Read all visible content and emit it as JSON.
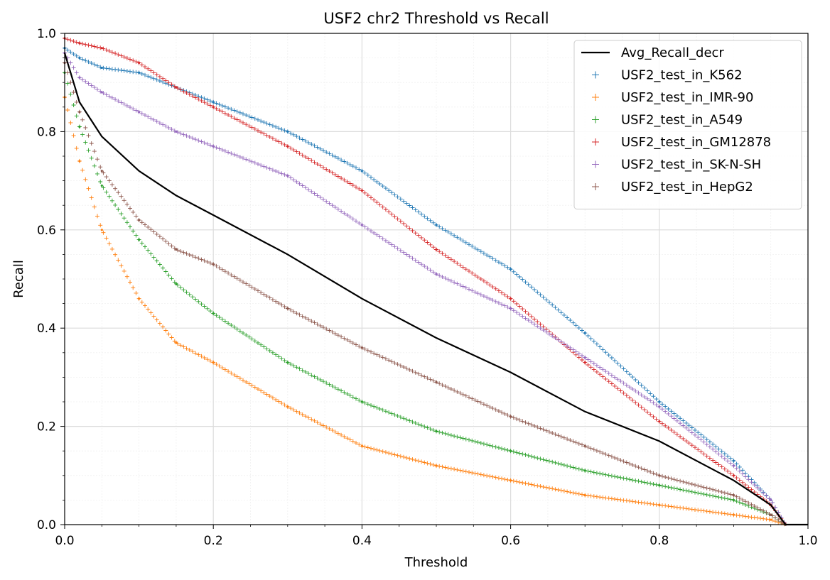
{
  "chart_data": {
    "type": "scatter",
    "title": "USF2 chr2 Threshold vs Recall",
    "xlabel": "Threshold",
    "ylabel": "Recall",
    "xlim": [
      0.0,
      1.0
    ],
    "ylim": [
      0.0,
      1.0
    ],
    "xticks": [
      "0.0",
      "0.2",
      "0.4",
      "0.6",
      "0.8",
      "1.0"
    ],
    "yticks": [
      "0.0",
      "0.2",
      "0.4",
      "0.6",
      "0.8",
      "1.0"
    ],
    "grid": "major and minor",
    "legend_position": "top-right",
    "series": [
      {
        "name": "Avg_Recall_decr",
        "kind": "line",
        "color": "#000000",
        "x": [
          0.0,
          0.02,
          0.05,
          0.1,
          0.15,
          0.2,
          0.3,
          0.4,
          0.5,
          0.6,
          0.7,
          0.8,
          0.9,
          0.95,
          0.97,
          1.0
        ],
        "y": [
          0.96,
          0.86,
          0.79,
          0.72,
          0.67,
          0.63,
          0.55,
          0.46,
          0.38,
          0.31,
          0.23,
          0.17,
          0.09,
          0.04,
          0.0,
          0.0
        ]
      },
      {
        "name": "USF2_test_in_K562",
        "kind": "marker",
        "color": "#1f77b4",
        "x": [
          0.0,
          0.02,
          0.05,
          0.1,
          0.15,
          0.2,
          0.3,
          0.4,
          0.5,
          0.6,
          0.7,
          0.8,
          0.9,
          0.95,
          0.97
        ],
        "y": [
          0.97,
          0.95,
          0.93,
          0.92,
          0.89,
          0.86,
          0.8,
          0.72,
          0.61,
          0.52,
          0.39,
          0.25,
          0.13,
          0.05,
          0.0
        ]
      },
      {
        "name": "USF2_test_in_IMR-90",
        "kind": "marker",
        "color": "#ff7f0e",
        "x": [
          0.0,
          0.02,
          0.05,
          0.1,
          0.15,
          0.2,
          0.3,
          0.4,
          0.5,
          0.6,
          0.7,
          0.8,
          0.9,
          0.95,
          0.97
        ],
        "y": [
          0.87,
          0.74,
          0.6,
          0.46,
          0.37,
          0.33,
          0.24,
          0.16,
          0.12,
          0.09,
          0.06,
          0.04,
          0.02,
          0.01,
          0.0
        ]
      },
      {
        "name": "USF2_test_in_A549",
        "kind": "marker",
        "color": "#2ca02c",
        "x": [
          0.0,
          0.02,
          0.05,
          0.1,
          0.15,
          0.2,
          0.3,
          0.4,
          0.5,
          0.6,
          0.7,
          0.8,
          0.9,
          0.95,
          0.97
        ],
        "y": [
          0.92,
          0.81,
          0.69,
          0.58,
          0.49,
          0.43,
          0.33,
          0.25,
          0.19,
          0.15,
          0.11,
          0.08,
          0.05,
          0.02,
          0.0
        ]
      },
      {
        "name": "USF2_test_in_GM12878",
        "kind": "marker",
        "color": "#d62728",
        "x": [
          0.0,
          0.02,
          0.05,
          0.1,
          0.15,
          0.2,
          0.3,
          0.4,
          0.5,
          0.6,
          0.7,
          0.8,
          0.9,
          0.95,
          0.97
        ],
        "y": [
          0.99,
          0.98,
          0.97,
          0.94,
          0.89,
          0.85,
          0.77,
          0.68,
          0.56,
          0.46,
          0.33,
          0.21,
          0.1,
          0.04,
          0.0
        ]
      },
      {
        "name": "USF2_test_in_SK-N-SH",
        "kind": "marker",
        "color": "#9467bd",
        "x": [
          0.0,
          0.02,
          0.05,
          0.1,
          0.15,
          0.2,
          0.3,
          0.4,
          0.5,
          0.6,
          0.7,
          0.8,
          0.9,
          0.95,
          0.97
        ],
        "y": [
          0.96,
          0.91,
          0.88,
          0.84,
          0.8,
          0.77,
          0.71,
          0.61,
          0.51,
          0.44,
          0.34,
          0.24,
          0.12,
          0.05,
          0.0
        ]
      },
      {
        "name": "USF2_test_in_HepG2",
        "kind": "marker",
        "color": "#8c564b",
        "x": [
          0.0,
          0.02,
          0.05,
          0.1,
          0.15,
          0.2,
          0.3,
          0.4,
          0.5,
          0.6,
          0.7,
          0.8,
          0.9,
          0.95,
          0.97
        ],
        "y": [
          0.94,
          0.84,
          0.72,
          0.62,
          0.56,
          0.53,
          0.44,
          0.36,
          0.29,
          0.22,
          0.16,
          0.1,
          0.06,
          0.02,
          0.0
        ]
      }
    ]
  }
}
